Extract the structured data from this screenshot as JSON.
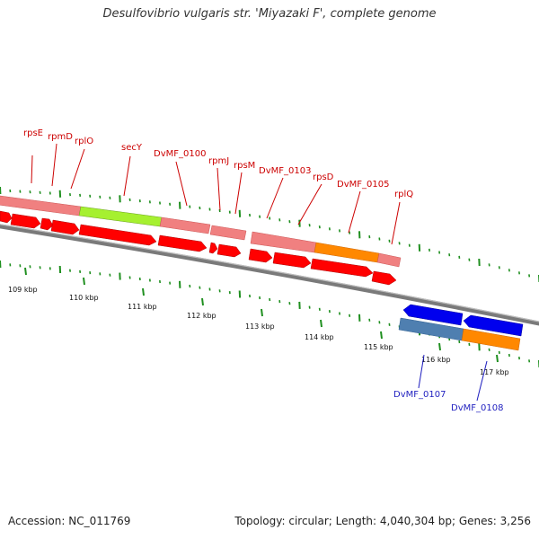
{
  "title": "Desulfovibrio vulgaris str. 'Miyazaki F', complete genome",
  "accession": "Accession: NC_011769",
  "summary": "Topology: circular; Length: 4,040,304 bp; Genes: 3,256",
  "colors": {
    "backbone": "#7a7a7a",
    "forward_cds": "#ff0000",
    "forward_gene": "#f08080",
    "reverse_cds": "#0000ee",
    "reverse_gene": "#4f7fb0",
    "highlight_green": "#a6f030",
    "highlight_orange": "#ff8800",
    "label_forward": "#cc0000",
    "label_reverse": "#1f1fbf",
    "tick_green": "#1f8f1f"
  },
  "scale_ticks": [
    "109 kbp",
    "110 kbp",
    "111 kbp",
    "112 kbp",
    "113 kbp",
    "114 kbp",
    "115 kbp",
    "116 kbp",
    "117 kbp"
  ],
  "gene_labels_forward": [
    "rpsE",
    "rpmD",
    "rplO",
    "secY",
    "DvMF_0100",
    "rpmJ",
    "rpsM",
    "DvMF_0103",
    "rpsD",
    "DvMF_0105",
    "rplQ"
  ],
  "gene_labels_reverse": [
    "DvMF_0107",
    "DvMF_0108"
  ]
}
